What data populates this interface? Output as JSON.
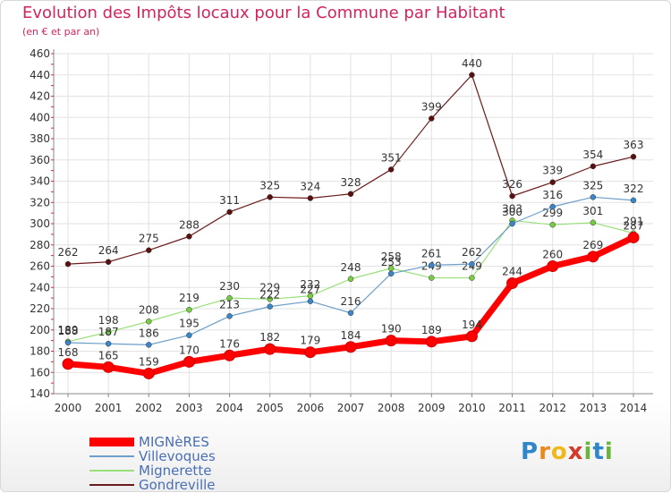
{
  "title": "Evolution des Impôts locaux pour la Commune par Habitant",
  "subtitle": "(en € et par an)",
  "brand": {
    "text": "Proxiti",
    "letters": [
      "P",
      "r",
      "o",
      "x",
      "i",
      "t",
      "i"
    ],
    "colors": [
      "#2f86c8",
      "#e98a1d",
      "#f0b81a",
      "#d23a2a",
      "#6bb53d",
      "#2f86c8",
      "#6bb53d"
    ]
  },
  "chart_data": {
    "type": "line",
    "categories": [
      "2000",
      "2001",
      "2002",
      "2003",
      "2004",
      "2005",
      "2006",
      "2007",
      "2008",
      "2009",
      "2010",
      "2011",
      "2012",
      "2013",
      "2014"
    ],
    "ylim": [
      140,
      460
    ],
    "yticks": [
      140,
      160,
      180,
      200,
      220,
      240,
      260,
      280,
      300,
      320,
      340,
      360,
      380,
      400,
      420,
      440,
      460
    ],
    "grid": true,
    "legend_position": "bottom-left",
    "series": [
      {
        "name": "Gondreville",
        "color": "#6b1a1a",
        "marker": "#5a1010",
        "width": 1.2,
        "values": [
          262,
          264,
          275,
          288,
          311,
          325,
          324,
          328,
          351,
          399,
          440,
          326,
          339,
          354,
          363
        ]
      },
      {
        "name": "Mignerette",
        "color": "#99e07a",
        "marker": "#77cc44",
        "width": 1.2,
        "values": [
          189,
          198,
          208,
          219,
          230,
          229,
          232,
          248,
          258,
          249,
          249,
          303,
          299,
          301,
          291
        ]
      },
      {
        "name": "Villevoques",
        "color": "#6b9ec8",
        "marker": "#3b86c8",
        "width": 1.2,
        "values": [
          188,
          187,
          186,
          195,
          213,
          222,
          227,
          216,
          253,
          261,
          262,
          300,
          316,
          325,
          322
        ]
      },
      {
        "name": "MIGNèRES",
        "color": "#ff0000",
        "marker": "#ff0000",
        "width": 7,
        "values": [
          168,
          165,
          159,
          170,
          176,
          182,
          179,
          184,
          190,
          189,
          194,
          244,
          260,
          269,
          287
        ]
      }
    ],
    "legend": [
      "MIGNèRES",
      "Villevoques",
      "Mignerette",
      "Gondreville"
    ]
  }
}
